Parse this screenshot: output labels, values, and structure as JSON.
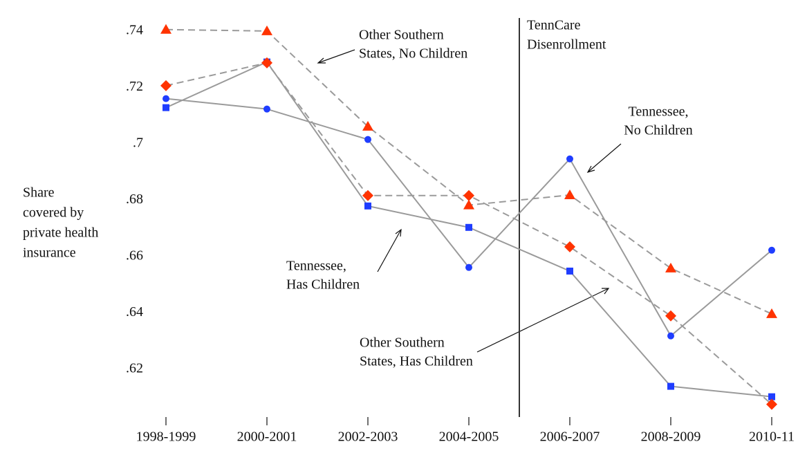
{
  "chart_data": {
    "type": "line",
    "ylabel": [
      "Share",
      "covered by",
      "private health",
      "insurance"
    ],
    "categories": [
      "1998-1999",
      "2000-2001",
      "2002-2003",
      "2004-2005",
      "2006-2007",
      "2008-2009",
      "2010-11"
    ],
    "series": [
      {
        "color": "#1f3dff",
        "line_color": "#9a9a9a",
        "dashed": false,
        "marker": "circle",
        "values": [
          0.716,
          0.7123,
          0.7015,
          0.6561,
          0.6946,
          0.6318,
          0.6622
        ]
      },
      {
        "color": "#1f3dff",
        "line_color": "#9a9a9a",
        "dashed": false,
        "marker": "square",
        "values": [
          0.7128,
          0.729,
          0.6779,
          0.6703,
          0.6548,
          0.6139,
          0.6102
        ]
      },
      {
        "color": "#ff3300",
        "line_color": "#9a9a9a",
        "dashed": true,
        "marker": "triangle",
        "values": [
          0.7405,
          0.74,
          0.7061,
          0.6782,
          0.6818,
          0.6558,
          0.6396
        ]
      },
      {
        "color": "#ff3300",
        "line_color": "#9a9a9a",
        "dashed": true,
        "marker": "diamond",
        "values": [
          0.7206,
          0.7287,
          0.6816,
          0.6816,
          0.6634,
          0.6389,
          0.6075
        ]
      }
    ],
    "ylim": [
      0.603,
      0.751
    ],
    "yticks": [
      {
        "value": 0.62,
        "label": ".62"
      },
      {
        "value": 0.64,
        "label": ".64"
      },
      {
        "value": 0.66,
        "label": ".66"
      },
      {
        "value": 0.68,
        "label": ".68"
      },
      {
        "value": 0.7,
        "label": ".7"
      },
      {
        "value": 0.72,
        "label": ".72"
      },
      {
        "value": 0.74,
        "label": ".74"
      }
    ],
    "vline": {
      "position": 3.5,
      "lines": [
        "TennCare",
        "Disenrollment"
      ]
    },
    "annotations": [
      {
        "lines": [
          "Other Southern",
          "States, No Children"
        ]
      },
      {
        "lines": [
          "Tennessee,",
          "No Children"
        ]
      },
      {
        "lines": [
          "Tennessee,",
          "Has Children"
        ]
      },
      {
        "lines": [
          "Other Southern",
          "States, Has Children"
        ]
      }
    ]
  }
}
